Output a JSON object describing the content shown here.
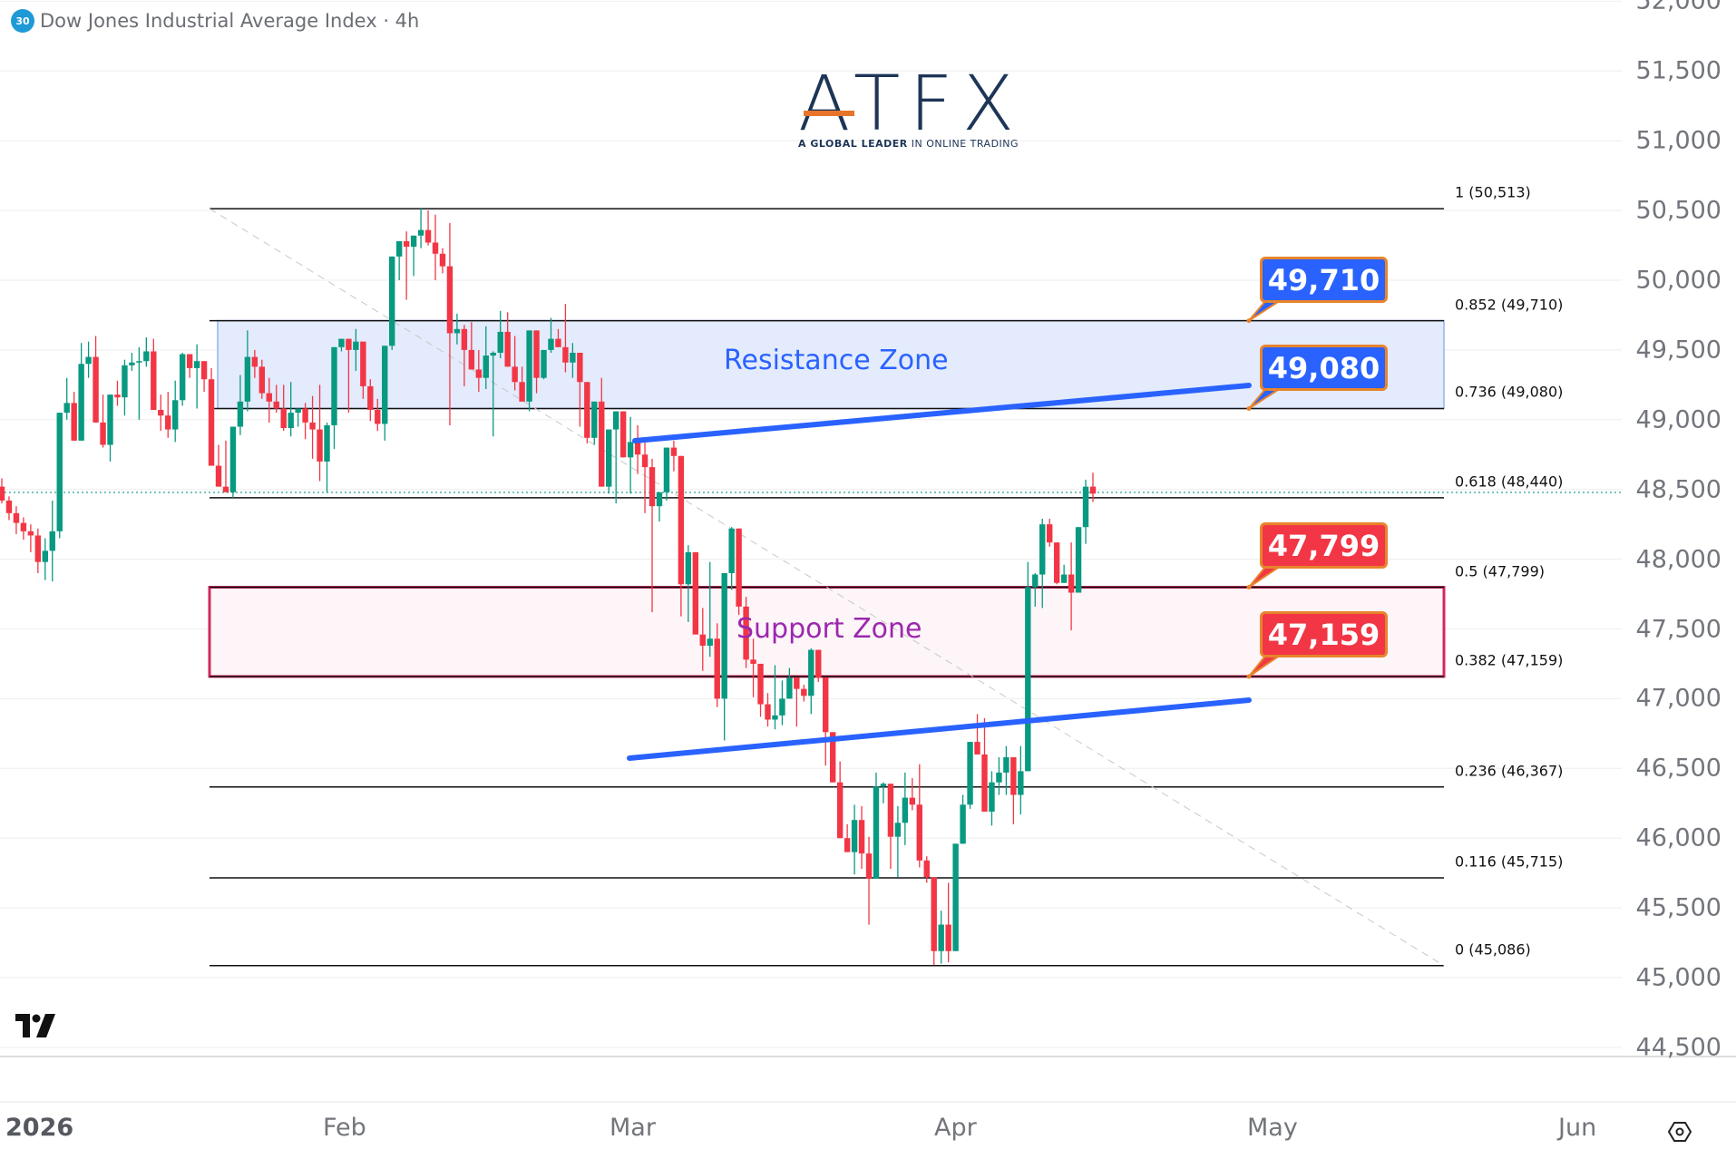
{
  "header": {
    "badge": "30",
    "title": "Dow Jones Industrial Average Index · 4h"
  },
  "logo": {
    "text": "ATFX",
    "tagline_bold": "A GLOBAL LEADER",
    "tagline_rest": " IN ONLINE TRADING"
  },
  "colors": {
    "up": "#089981",
    "down": "#f23645",
    "trendline": "#2962ff",
    "resistance_fill": "#e3ebfc",
    "resistance_border": "#90b4f0",
    "support_fill": "#fdf5f7",
    "support_border": "#d0295e",
    "callout_blue": "#2962ff",
    "callout_red": "#f23645",
    "callout_border": "#e8842c",
    "resistance_text": "#2962ff",
    "support_text": "#9c27b0",
    "grid": "#eeeeee",
    "axis_text": "#72757b"
  },
  "zones": {
    "resistance_label": "Resistance Zone",
    "support_label": "Support Zone"
  },
  "callouts": [
    {
      "label": "49,710",
      "kind": "blue"
    },
    {
      "label": "49,080",
      "kind": "blue"
    },
    {
      "label": "47,799",
      "kind": "red"
    },
    {
      "label": "47,159",
      "kind": "red"
    }
  ],
  "fib_labels": [
    "1 (50,513)",
    "0.852 (49,710)",
    "0.736 (49,080)",
    "0.618 (48,440)",
    "0.5 (47,799)",
    "0.382 (47,159)",
    "0.236 (46,367)",
    "0.116 (45,715)",
    "0 (45,086)"
  ],
  "y_axis": [
    "52,000",
    "51,500",
    "51,000",
    "50,500",
    "50,000",
    "49,500",
    "49,000",
    "48,500",
    "48,000",
    "47,500",
    "47,000",
    "46,500",
    "46,000",
    "45,500",
    "45,000",
    "44,500"
  ],
  "x_axis": [
    "2026",
    "Feb",
    "Mar",
    "Apr",
    "May",
    "Jun"
  ],
  "chart_data": {
    "type": "candlestick",
    "title": "Dow Jones Industrial Average Index · 4h",
    "xlabel": "",
    "ylabel": "",
    "ylim": [
      44400,
      52000
    ],
    "x_ticks": [
      "2026",
      "Feb",
      "Mar",
      "Apr",
      "May",
      "Jun"
    ],
    "y_ticks": [
      44500,
      45000,
      45500,
      46000,
      46500,
      47000,
      47500,
      48000,
      48500,
      49000,
      49500,
      50000,
      50500,
      51000,
      51500,
      52000
    ],
    "grid": true,
    "current_price": 48440,
    "fibonacci_retracement": {
      "high": 50513,
      "low": 45086,
      "levels": [
        {
          "ratio": 1,
          "price": 50513
        },
        {
          "ratio": 0.852,
          "price": 49710
        },
        {
          "ratio": 0.736,
          "price": 49080
        },
        {
          "ratio": 0.618,
          "price": 48440
        },
        {
          "ratio": 0.5,
          "price": 47799
        },
        {
          "ratio": 0.382,
          "price": 47159
        },
        {
          "ratio": 0.236,
          "price": 46367
        },
        {
          "ratio": 0.116,
          "price": 45715
        },
        {
          "ratio": 0,
          "price": 45086
        }
      ]
    },
    "zones": [
      {
        "name": "Resistance Zone",
        "top": 49710,
        "bottom": 49080
      },
      {
        "name": "Support Zone",
        "top": 47799,
        "bottom": 47159
      }
    ],
    "trendlines": [
      {
        "name": "upper",
        "from": [
          700,
          48790
        ],
        "to": [
          1377,
          49230
        ]
      },
      {
        "name": "lower",
        "from": [
          694,
          46600
        ],
        "to": [
          1377,
          47020
        ]
      }
    ],
    "candles_ohlc": [
      [
        48520,
        48580,
        48400,
        48420
      ],
      [
        48420,
        48450,
        48280,
        48330
      ],
      [
        48330,
        48380,
        48180,
        48260
      ],
      [
        48260,
        48300,
        48140,
        48200
      ],
      [
        48200,
        48250,
        48050,
        48170
      ],
      [
        48170,
        48220,
        47900,
        47980
      ],
      [
        47980,
        48150,
        47850,
        48060
      ],
      [
        48060,
        48420,
        47840,
        48200
      ],
      [
        48200,
        48460,
        48150,
        49050
      ],
      [
        49050,
        49300,
        49000,
        49120
      ],
      [
        49120,
        49200,
        49000,
        48850
      ],
      [
        48850,
        49550,
        48850,
        49400
      ],
      [
        49400,
        49560,
        49300,
        49450
      ],
      [
        49450,
        49600,
        49150,
        48980
      ],
      [
        48980,
        49180,
        48800,
        48820
      ],
      [
        48820,
        49120,
        48700,
        49180
      ],
      [
        49180,
        49280,
        49100,
        49160
      ],
      [
        49160,
        49430,
        49030,
        49390
      ],
      [
        49390,
        49480,
        49350,
        49410
      ],
      [
        49410,
        49520,
        49000,
        49420
      ],
      [
        49420,
        49590,
        49380,
        49490
      ],
      [
        49490,
        49580,
        49130,
        49070
      ],
      [
        49070,
        49180,
        48920,
        49030
      ],
      [
        49030,
        49200,
        48870,
        48930
      ],
      [
        48930,
        49280,
        48840,
        49140
      ],
      [
        49140,
        49480,
        49100,
        49470
      ],
      [
        49470,
        49460,
        49300,
        49370
      ],
      [
        49370,
        49540,
        49080,
        49420
      ],
      [
        49420,
        49420,
        49200,
        49290
      ],
      [
        49290,
        49370,
        48780,
        48670
      ],
      [
        48670,
        48820,
        48620,
        48520
      ],
      [
        48520,
        48850,
        48500,
        48480
      ],
      [
        48480,
        48890,
        48440,
        48950
      ],
      [
        48950,
        49320,
        48890,
        49130
      ],
      [
        49130,
        49640,
        49060,
        49450
      ],
      [
        49450,
        49500,
        49300,
        49380
      ],
      [
        49380,
        49430,
        49150,
        49190
      ],
      [
        49190,
        49300,
        48980,
        49130
      ],
      [
        49130,
        49250,
        49050,
        49080
      ],
      [
        49080,
        49250,
        48920,
        48940
      ],
      [
        48940,
        49270,
        48880,
        49050
      ],
      [
        49050,
        49020,
        48950,
        49080
      ],
      [
        49080,
        49120,
        48860,
        48980
      ],
      [
        48980,
        49170,
        48720,
        48930
      ],
      [
        48930,
        49250,
        48560,
        48700
      ],
      [
        48700,
        48980,
        48480,
        48960
      ],
      [
        48960,
        49300,
        48790,
        49520
      ],
      [
        49520,
        49580,
        49490,
        49580
      ],
      [
        49580,
        49430,
        49050,
        49500
      ],
      [
        49500,
        49650,
        49350,
        49560
      ],
      [
        49560,
        49500,
        49150,
        49240
      ],
      [
        49240,
        49290,
        48990,
        49070
      ],
      [
        49070,
        49150,
        48920,
        48970
      ],
      [
        48970,
        48990,
        48850,
        49530
      ],
      [
        49530,
        50050,
        49500,
        50170
      ],
      [
        50170,
        50230,
        50000,
        50280
      ],
      [
        50280,
        50350,
        49860,
        50240
      ],
      [
        50240,
        50280,
        50030,
        50320
      ],
      [
        50320,
        50520,
        50230,
        50360
      ],
      [
        50360,
        50500,
        50250,
        50270
      ],
      [
        50270,
        50470,
        50000,
        50190
      ],
      [
        50190,
        50230,
        50050,
        50100
      ],
      [
        50100,
        50410,
        48960,
        49620
      ],
      [
        49620,
        49760,
        49540,
        49650
      ],
      [
        49650,
        49680,
        49240,
        49500
      ],
      [
        49500,
        49700,
        49550,
        49360
      ],
      [
        49360,
        49500,
        49200,
        49300
      ],
      [
        49300,
        49670,
        49220,
        49460
      ],
      [
        49460,
        49490,
        48880,
        49480
      ],
      [
        49480,
        49780,
        49440,
        49630
      ],
      [
        49630,
        49770,
        49450,
        49380
      ],
      [
        49380,
        49600,
        49210,
        49270
      ],
      [
        49270,
        49380,
        49170,
        49130
      ],
      [
        49130,
        49520,
        49060,
        49640
      ],
      [
        49640,
        49640,
        49190,
        49300
      ],
      [
        49300,
        49470,
        49290,
        49500
      ],
      [
        49500,
        49730,
        49480,
        49580
      ],
      [
        49580,
        49650,
        49560,
        49520
      ],
      [
        49520,
        49830,
        49340,
        49410
      ],
      [
        49410,
        49550,
        49300,
        49480
      ],
      [
        49480,
        49230,
        48950,
        49270
      ],
      [
        49270,
        49180,
        48830,
        48870
      ],
      [
        48870,
        49080,
        48820,
        49130
      ],
      [
        49130,
        49300,
        48900,
        48520
      ],
      [
        48520,
        48930,
        48470,
        48930
      ],
      [
        48930,
        48960,
        48400,
        49060
      ],
      [
        49060,
        48820,
        48730,
        48730
      ],
      [
        48730,
        49020,
        48470,
        48840
      ],
      [
        48840,
        48960,
        48610,
        48750
      ],
      [
        48750,
        48850,
        48330,
        48660
      ],
      [
        48660,
        48720,
        47620,
        48380
      ],
      [
        48380,
        48420,
        48270,
        48480
      ],
      [
        48480,
        48680,
        48420,
        48800
      ],
      [
        48800,
        48850,
        48630,
        48740
      ],
      [
        48740,
        48420,
        47590,
        47820
      ],
      [
        47820,
        48100,
        47550,
        48050
      ],
      [
        48050,
        47830,
        47490,
        47460
      ],
      [
        47460,
        47650,
        47200,
        47380
      ],
      [
        47380,
        47980,
        47300,
        47430
      ],
      [
        47430,
        47540,
        46940,
        47000
      ],
      [
        47000,
        47650,
        46700,
        47900
      ],
      [
        47900,
        48230,
        47780,
        48220
      ],
      [
        48220,
        48210,
        47600,
        47660
      ],
      [
        47660,
        47730,
        47220,
        47280
      ],
      [
        47280,
        47430,
        47010,
        47250
      ],
      [
        47250,
        47010,
        46870,
        46960
      ],
      [
        46960,
        47040,
        46800,
        46850
      ],
      [
        46850,
        47240,
        46780,
        46880
      ],
      [
        46880,
        47130,
        46810,
        47000
      ],
      [
        47000,
        47220,
        47000,
        47150
      ],
      [
        47150,
        47150,
        46800,
        47070
      ],
      [
        47070,
        47100,
        46980,
        47020
      ],
      [
        47020,
        47360,
        46890,
        47350
      ],
      [
        47350,
        47320,
        47120,
        47150
      ],
      [
        47150,
        47050,
        46520,
        46760
      ],
      [
        46760,
        46760,
        46400,
        46400
      ],
      [
        46400,
        46550,
        46110,
        46000
      ],
      [
        46000,
        46100,
        45900,
        45900
      ],
      [
        45900,
        46240,
        45740,
        46130
      ],
      [
        46130,
        46230,
        45780,
        45890
      ],
      [
        45890,
        46010,
        45380,
        45710
      ],
      [
        45710,
        46470,
        45830,
        46370
      ],
      [
        46370,
        46400,
        46250,
        46390
      ],
      [
        46390,
        46390,
        45780,
        46010
      ],
      [
        46010,
        46230,
        45720,
        46110
      ],
      [
        46110,
        46470,
        45950,
        46290
      ],
      [
        46290,
        46430,
        46200,
        46240
      ],
      [
        46240,
        46530,
        45790,
        45840
      ],
      [
        45840,
        45870,
        45680,
        45720
      ],
      [
        45720,
        45720,
        45090,
        45190
      ],
      [
        45190,
        45480,
        45100,
        45380
      ],
      [
        45380,
        45680,
        45110,
        45190
      ],
      [
        45190,
        45950,
        45600,
        45960
      ],
      [
        45960,
        46310,
        45960,
        46240
      ],
      [
        46240,
        46690,
        46210,
        46690
      ],
      [
        46690,
        46890,
        46610,
        46600
      ],
      [
        46600,
        46860,
        46350,
        46190
      ],
      [
        46190,
        46480,
        46090,
        46400
      ],
      [
        46400,
        46580,
        46310,
        46470
      ],
      [
        46470,
        46660,
        46310,
        46580
      ],
      [
        46580,
        46580,
        46100,
        46310
      ],
      [
        46310,
        46660,
        46170,
        46480
      ],
      [
        46480,
        47980,
        46790,
        47800
      ],
      [
        47800,
        47900,
        47660,
        47890
      ],
      [
        47890,
        48290,
        47650,
        48250
      ],
      [
        48250,
        48290,
        48090,
        48120
      ],
      [
        48120,
        48120,
        47820,
        47830
      ],
      [
        47830,
        47960,
        47840,
        47890
      ],
      [
        47890,
        48120,
        47490,
        47760
      ],
      [
        47760,
        48230,
        47790,
        48230
      ],
      [
        48230,
        48570,
        48110,
        48520
      ],
      [
        48520,
        48620,
        48410,
        48470
      ]
    ]
  },
  "footer": {
    "tv_logo": "tradingview-logo",
    "settings_icon": "settings-icon"
  }
}
